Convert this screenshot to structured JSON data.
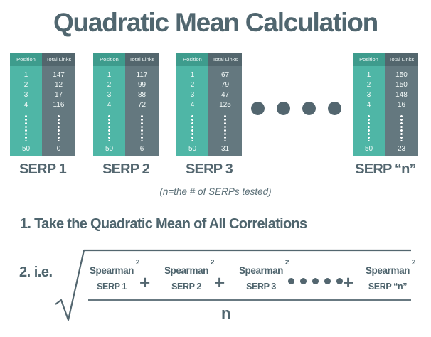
{
  "title": "Quadratic Mean Calculation",
  "table_headers": {
    "position": "Position",
    "links": "Total Links"
  },
  "serps": [
    {
      "label": "SERP 1",
      "positions": [
        "1",
        "2",
        "3",
        "4"
      ],
      "links": [
        "147",
        "12",
        "17",
        "116"
      ],
      "last_position": "50",
      "last_links": "0"
    },
    {
      "label": "SERP 2",
      "positions": [
        "1",
        "2",
        "3",
        "4"
      ],
      "links": [
        "117",
        "99",
        "88",
        "72"
      ],
      "last_position": "50",
      "last_links": "6"
    },
    {
      "label": "SERP 3",
      "positions": [
        "1",
        "2",
        "3",
        "4"
      ],
      "links": [
        "67",
        "79",
        "47",
        "125"
      ],
      "last_position": "50",
      "last_links": "31"
    },
    {
      "label": "SERP “n”",
      "positions": [
        "1",
        "2",
        "3",
        "4"
      ],
      "links": [
        "150",
        "150",
        "148",
        "16"
      ],
      "last_position": "50",
      "last_links": "23"
    }
  ],
  "note": "(n=the # of SERPs tested)",
  "step1": "1. Take the Quadratic Mean of All Correlations",
  "step2": "2. i.e.",
  "formula": {
    "terms": [
      {
        "name": "Spearman",
        "exp": "2",
        "sub": "SERP 1"
      },
      {
        "name": "Spearman",
        "exp": "2",
        "sub": "SERP 2"
      },
      {
        "name": "Spearman",
        "exp": "2",
        "sub": "SERP 3"
      },
      {
        "name": "Spearman",
        "exp": "2",
        "sub": "SERP “n”"
      }
    ],
    "plus": "+",
    "denominator": "n"
  },
  "colors": {
    "teal": "#4fb6a6",
    "slate": "#64787f",
    "text": "#50666f"
  }
}
